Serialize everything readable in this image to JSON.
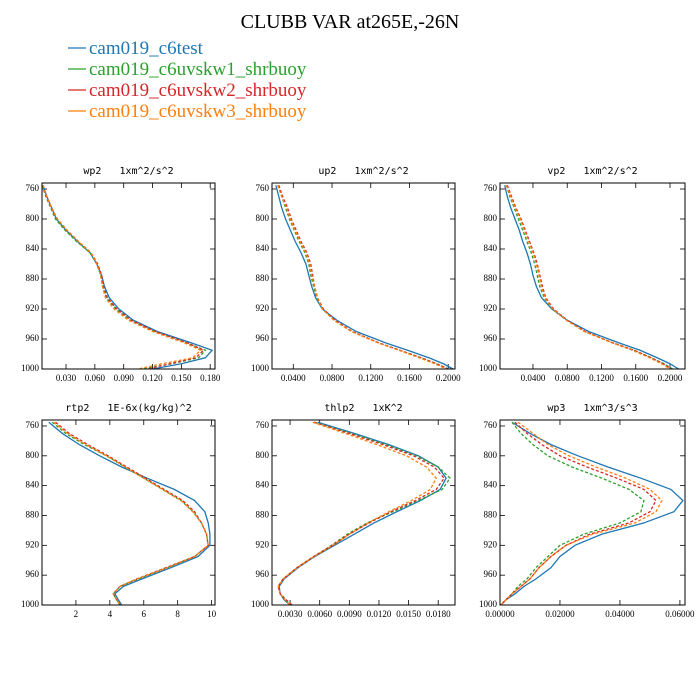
{
  "title": "CLUBB VAR at265E,-26N",
  "legend": [
    {
      "name": "cam019_c6test",
      "color": "#1f77b4"
    },
    {
      "name": "cam019_c6uvskw1_shrbuoy",
      "color": "#2ca02c"
    },
    {
      "name": "cam019_c6uvskw2_shrbuoy",
      "color": "#d62728"
    },
    {
      "name": "cam019_c6uvskw3_shrbuoy",
      "color": "#ff7f0e"
    }
  ],
  "chart_data": [
    {
      "type": "line",
      "title": "wp2   1xm^2/s^2",
      "y": [
        755,
        770,
        785,
        800,
        815,
        830,
        845,
        860,
        875,
        890,
        905,
        920,
        935,
        950,
        965,
        975,
        985,
        993,
        1000
      ],
      "ylim": [
        752,
        1000
      ],
      "y_inverted": true,
      "yticks": [
        760,
        800,
        840,
        880,
        920,
        960,
        1000
      ],
      "xlim": [
        0.005,
        0.185
      ],
      "xticks": [
        {
          "value": 0.03,
          "label": "0.030"
        },
        {
          "value": 0.06,
          "label": "0.060"
        },
        {
          "value": 0.09,
          "label": "0.090"
        },
        {
          "value": 0.12,
          "label": "0.120"
        },
        {
          "value": 0.15,
          "label": "0.150"
        },
        {
          "value": 0.18,
          "label": "0.180"
        }
      ],
      "series": [
        {
          "values": [
            0.006,
            0.01,
            0.015,
            0.02,
            0.03,
            0.042,
            0.055,
            0.062,
            0.067,
            0.07,
            0.075,
            0.085,
            0.1,
            0.125,
            0.16,
            0.182,
            0.175,
            0.15,
            0.12
          ]
        },
        {
          "values": [
            0.005,
            0.009,
            0.014,
            0.019,
            0.029,
            0.041,
            0.055,
            0.062,
            0.066,
            0.068,
            0.072,
            0.082,
            0.097,
            0.122,
            0.155,
            0.175,
            0.168,
            0.14,
            0.11
          ]
        },
        {
          "values": [
            0.006,
            0.01,
            0.015,
            0.021,
            0.031,
            0.043,
            0.056,
            0.063,
            0.067,
            0.069,
            0.073,
            0.083,
            0.098,
            0.123,
            0.156,
            0.173,
            0.165,
            0.138,
            0.115
          ]
        },
        {
          "values": [
            0.006,
            0.01,
            0.015,
            0.021,
            0.031,
            0.043,
            0.056,
            0.062,
            0.066,
            0.068,
            0.071,
            0.08,
            0.095,
            0.12,
            0.153,
            0.17,
            0.162,
            0.13,
            0.105
          ]
        }
      ]
    },
    {
      "type": "line",
      "title": "up2   1xm^2/s^2",
      "y": [
        755,
        770,
        785,
        800,
        815,
        830,
        845,
        860,
        875,
        890,
        905,
        920,
        935,
        950,
        965,
        975,
        985,
        993,
        1000
      ],
      "ylim": [
        752,
        1000
      ],
      "y_inverted": true,
      "yticks": [
        760,
        800,
        840,
        880,
        920,
        960,
        1000
      ],
      "xlim": [
        0.018,
        0.207
      ],
      "xticks": [
        {
          "value": 0.04,
          "label": "0.0400"
        },
        {
          "value": 0.08,
          "label": "0.0800"
        },
        {
          "value": 0.12,
          "label": "0.1200"
        },
        {
          "value": 0.16,
          "label": "0.1600"
        },
        {
          "value": 0.2,
          "label": "0.2000"
        }
      ],
      "series": [
        {
          "values": [
            0.022,
            0.025,
            0.028,
            0.032,
            0.037,
            0.042,
            0.048,
            0.053,
            0.056,
            0.059,
            0.063,
            0.07,
            0.085,
            0.105,
            0.135,
            0.158,
            0.18,
            0.195,
            0.205
          ]
        },
        {
          "values": [
            0.024,
            0.028,
            0.032,
            0.036,
            0.041,
            0.046,
            0.052,
            0.056,
            0.058,
            0.061,
            0.064,
            0.07,
            0.082,
            0.1,
            0.128,
            0.15,
            0.172,
            0.188,
            0.2
          ]
        },
        {
          "values": [
            0.025,
            0.029,
            0.034,
            0.038,
            0.043,
            0.048,
            0.054,
            0.058,
            0.06,
            0.062,
            0.065,
            0.071,
            0.083,
            0.101,
            0.128,
            0.15,
            0.172,
            0.188,
            0.2
          ]
        },
        {
          "values": [
            0.024,
            0.028,
            0.033,
            0.037,
            0.042,
            0.047,
            0.053,
            0.057,
            0.059,
            0.062,
            0.065,
            0.07,
            0.082,
            0.1,
            0.127,
            0.149,
            0.17,
            0.186,
            0.198
          ]
        }
      ]
    },
    {
      "type": "line",
      "title": "vp2   1xm^2/s^2",
      "y": [
        755,
        770,
        785,
        800,
        815,
        830,
        845,
        860,
        875,
        890,
        905,
        920,
        935,
        950,
        965,
        975,
        985,
        993,
        1000
      ],
      "ylim": [
        752,
        1000
      ],
      "y_inverted": true,
      "yticks": [
        760,
        800,
        840,
        880,
        920,
        960,
        1000
      ],
      "xlim": [
        0.0015,
        0.2175
      ],
      "xticks": [
        {
          "value": 0.04,
          "label": "0.0400"
        },
        {
          "value": 0.08,
          "label": "0.0800"
        },
        {
          "value": 0.12,
          "label": "0.1200"
        },
        {
          "value": 0.16,
          "label": "0.1600"
        },
        {
          "value": 0.2,
          "label": "0.2000"
        }
      ],
      "series": [
        {
          "values": [
            0.007,
            0.01,
            0.014,
            0.019,
            0.024,
            0.028,
            0.033,
            0.037,
            0.04,
            0.044,
            0.05,
            0.062,
            0.08,
            0.105,
            0.14,
            0.165,
            0.185,
            0.2,
            0.21
          ]
        },
        {
          "values": [
            0.009,
            0.013,
            0.018,
            0.023,
            0.028,
            0.033,
            0.038,
            0.042,
            0.045,
            0.048,
            0.053,
            0.063,
            0.079,
            0.1,
            0.133,
            0.158,
            0.178,
            0.193,
            0.203
          ]
        },
        {
          "values": [
            0.01,
            0.015,
            0.02,
            0.026,
            0.031,
            0.036,
            0.041,
            0.045,
            0.048,
            0.051,
            0.055,
            0.064,
            0.08,
            0.101,
            0.133,
            0.158,
            0.178,
            0.192,
            0.202
          ]
        },
        {
          "values": [
            0.009,
            0.014,
            0.019,
            0.025,
            0.03,
            0.035,
            0.04,
            0.044,
            0.047,
            0.05,
            0.054,
            0.063,
            0.079,
            0.1,
            0.132,
            0.156,
            0.176,
            0.19,
            0.2
          ]
        }
      ]
    },
    {
      "type": "line",
      "title": "rtp2   1E-6x(kg/kg)^2",
      "y": [
        755,
        770,
        785,
        800,
        815,
        830,
        845,
        860,
        875,
        890,
        905,
        920,
        935,
        950,
        965,
        975,
        985,
        993,
        1000
      ],
      "ylim": [
        752,
        1000
      ],
      "y_inverted": true,
      "yticks": [
        760,
        800,
        840,
        880,
        920,
        960,
        1000
      ],
      "xlim": [
        0,
        10.2
      ],
      "xticks": [
        2,
        4,
        6,
        8,
        10
      ],
      "series": [
        {
          "values": [
            0.4,
            1.2,
            2.2,
            3.4,
            4.7,
            6.2,
            7.8,
            9.0,
            9.6,
            9.8,
            9.9,
            9.9,
            9.2,
            7.6,
            5.9,
            4.8,
            4.3,
            4.5,
            4.7
          ]
        },
        {
          "values": [
            0.6,
            1.4,
            2.5,
            3.8,
            4.9,
            6.0,
            7.1,
            8.2,
            8.9,
            9.4,
            9.7,
            9.8,
            9.0,
            7.4,
            5.7,
            4.6,
            4.2,
            4.4,
            4.6
          ]
        },
        {
          "values": [
            0.8,
            1.6,
            2.7,
            3.9,
            5.0,
            6.1,
            7.2,
            8.3,
            9.0,
            9.4,
            9.7,
            9.8,
            9.0,
            7.3,
            5.6,
            4.6,
            4.2,
            4.4,
            4.6
          ]
        },
        {
          "values": [
            0.7,
            1.5,
            2.6,
            3.8,
            4.9,
            6.0,
            7.1,
            8.2,
            8.9,
            9.4,
            9.7,
            9.8,
            9.0,
            7.4,
            5.6,
            4.6,
            4.2,
            4.4,
            4.6
          ]
        }
      ]
    },
    {
      "type": "line",
      "title": "thlp2   1xK^2",
      "y": [
        755,
        770,
        785,
        800,
        815,
        830,
        845,
        860,
        875,
        890,
        905,
        920,
        935,
        950,
        965,
        975,
        985,
        993,
        1000
      ],
      "ylim": [
        752,
        1000
      ],
      "y_inverted": true,
      "yticks": [
        760,
        800,
        840,
        880,
        920,
        960,
        1000
      ],
      "xlim": [
        0.00117,
        0.0197
      ],
      "xticks": [
        {
          "value": 0.003,
          "label": "0.0030"
        },
        {
          "value": 0.006,
          "label": "0.0060"
        },
        {
          "value": 0.009,
          "label": "0.0090"
        },
        {
          "value": 0.012,
          "label": "0.0120"
        },
        {
          "value": 0.015,
          "label": "0.0150"
        },
        {
          "value": 0.018,
          "label": "0.0180"
        }
      ],
      "series": [
        {
          "values": [
            0.0058,
            0.0095,
            0.013,
            0.016,
            0.018,
            0.0188,
            0.0182,
            0.0162,
            0.0138,
            0.0115,
            0.0095,
            0.0075,
            0.0055,
            0.0038,
            0.0024,
            0.0019,
            0.002,
            0.0024,
            0.003
          ]
        },
        {
          "values": [
            0.0055,
            0.0092,
            0.0127,
            0.0158,
            0.018,
            0.0192,
            0.0184,
            0.016,
            0.0134,
            0.0108,
            0.0088,
            0.0072,
            0.0054,
            0.0037,
            0.0023,
            0.0018,
            0.002,
            0.0025,
            0.0031
          ]
        },
        {
          "values": [
            0.0054,
            0.009,
            0.0124,
            0.0155,
            0.0176,
            0.0186,
            0.0178,
            0.0157,
            0.0132,
            0.011,
            0.009,
            0.0073,
            0.0054,
            0.0037,
            0.0023,
            0.0018,
            0.002,
            0.0026,
            0.0032
          ]
        },
        {
          "values": [
            0.0053,
            0.0086,
            0.0118,
            0.0148,
            0.0168,
            0.0178,
            0.0172,
            0.0153,
            0.013,
            0.0109,
            0.009,
            0.0073,
            0.0054,
            0.0037,
            0.0023,
            0.0018,
            0.002,
            0.0025,
            0.003
          ]
        }
      ]
    },
    {
      "type": "line",
      "title": "wp3   1xm^3/s^3",
      "y": [
        755,
        770,
        785,
        800,
        815,
        830,
        845,
        860,
        875,
        890,
        905,
        920,
        935,
        950,
        965,
        975,
        985,
        993,
        1000
      ],
      "ylim": [
        752,
        1000
      ],
      "y_inverted": true,
      "yticks": [
        760,
        800,
        840,
        880,
        920,
        960,
        1000
      ],
      "xlim": [
        0,
        0.0617
      ],
      "xticks": [
        {
          "value": 0,
          "label": "0.00000"
        },
        {
          "value": 0.02,
          "label": "0.02000"
        },
        {
          "value": 0.04,
          "label": "0.04000"
        },
        {
          "value": 0.06,
          "label": "0.06000"
        }
      ],
      "series": [
        {
          "values": [
            0.004,
            0.01,
            0.017,
            0.026,
            0.036,
            0.047,
            0.057,
            0.061,
            0.058,
            0.048,
            0.034,
            0.025,
            0.02,
            0.017,
            0.012,
            0.008,
            0.005,
            0.002,
            0.0003
          ]
        },
        {
          "values": [
            0.004,
            0.007,
            0.011,
            0.016,
            0.024,
            0.034,
            0.043,
            0.048,
            0.047,
            0.04,
            0.028,
            0.02,
            0.016,
            0.012,
            0.009,
            0.006,
            0.004,
            0.002,
            0.0003
          ]
        },
        {
          "values": [
            0.005,
            0.009,
            0.014,
            0.02,
            0.029,
            0.039,
            0.048,
            0.052,
            0.05,
            0.043,
            0.03,
            0.022,
            0.017,
            0.013,
            0.01,
            0.007,
            0.004,
            0.002,
            0.0003
          ]
        },
        {
          "values": [
            0.006,
            0.011,
            0.016,
            0.023,
            0.032,
            0.042,
            0.05,
            0.054,
            0.052,
            0.045,
            0.031,
            0.022,
            0.017,
            0.013,
            0.01,
            0.007,
            0.004,
            0.002,
            0.0003
          ]
        }
      ]
    }
  ]
}
